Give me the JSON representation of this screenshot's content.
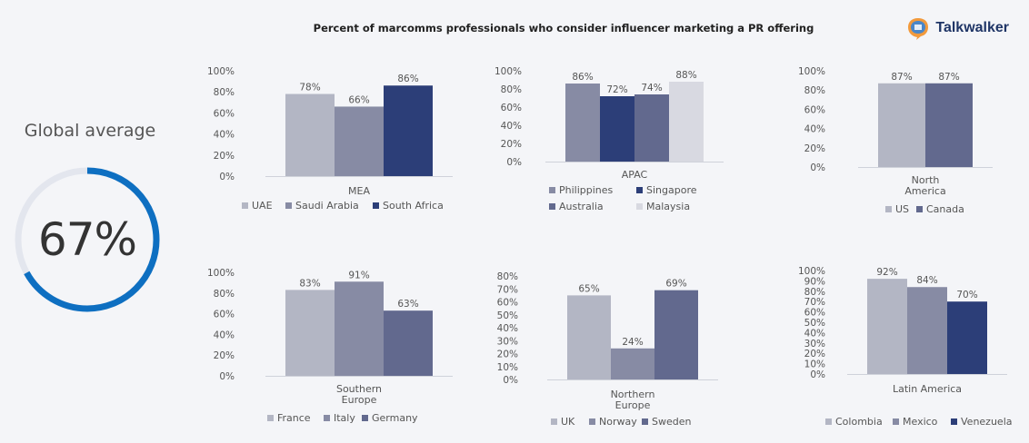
{
  "header": {
    "title": "Percent of marcomms professionals who consider influencer marketing a PR offering",
    "brand": "Talkwalker"
  },
  "global": {
    "label": "Global average",
    "value_text": "67%",
    "value": 67
  },
  "colors": {
    "palette": [
      "#b3b6c4",
      "#878ba4",
      "#2c3e78",
      "#62698e",
      "#d8d9e1"
    ],
    "ring": "#0e6fc1",
    "ring_track": "#e3e6ee"
  },
  "chart_data": [
    {
      "type": "bar",
      "title": "MEA",
      "ylim": [
        0,
        100
      ],
      "yticks": [
        0,
        20,
        40,
        60,
        80,
        100
      ],
      "series": [
        {
          "name": "UAE",
          "value": 78,
          "label": "78%",
          "color": "#b3b6c4"
        },
        {
          "name": "Saudi Arabia",
          "value": 66,
          "label": "66%",
          "color": "#878ba4"
        },
        {
          "name": "South Africa",
          "value": 86,
          "label": "86%",
          "color": "#2c3e78"
        }
      ],
      "legend": "bottom"
    },
    {
      "type": "bar",
      "title": "APAC",
      "ylim": [
        0,
        100
      ],
      "yticks": [
        0,
        20,
        40,
        60,
        80,
        100
      ],
      "series": [
        {
          "name": "Philippines",
          "value": 86,
          "label": "86%",
          "color": "#878ba4"
        },
        {
          "name": "Singapore",
          "value": 72,
          "label": "72%",
          "color": "#2c3e78"
        },
        {
          "name": "Australia",
          "value": 74,
          "label": "74%",
          "color": "#62698e"
        },
        {
          "name": "Malaysia",
          "value": 88,
          "label": "88%",
          "color": "#d8d9e1"
        }
      ],
      "legend": "bottom"
    },
    {
      "type": "bar",
      "title": "North America",
      "ylim": [
        0,
        100
      ],
      "yticks": [
        0,
        20,
        40,
        60,
        80,
        100
      ],
      "series": [
        {
          "name": "US",
          "value": 87,
          "label": "87%",
          "color": "#b3b6c4"
        },
        {
          "name": "Canada",
          "value": 87,
          "label": "87%",
          "color": "#62698e"
        }
      ],
      "legend": "bottom"
    },
    {
      "type": "bar",
      "title": "Southern Europe",
      "ylim": [
        0,
        100
      ],
      "yticks": [
        0,
        20,
        40,
        60,
        80,
        100
      ],
      "series": [
        {
          "name": "France",
          "value": 83,
          "label": "83%",
          "color": "#b3b6c4"
        },
        {
          "name": "Italy",
          "value": 91,
          "label": "91%",
          "color": "#878ba4"
        },
        {
          "name": "Germany",
          "value": 63,
          "label": "63%",
          "color": "#62698e"
        }
      ],
      "legend": "bottom"
    },
    {
      "type": "bar",
      "title": "Northern Europe",
      "ylim": [
        0,
        80
      ],
      "yticks": [
        0,
        10,
        20,
        30,
        40,
        50,
        60,
        70,
        80
      ],
      "series": [
        {
          "name": "UK",
          "value": 65,
          "label": "65%",
          "color": "#b3b6c4"
        },
        {
          "name": "Norway",
          "value": 24,
          "label": "24%",
          "color": "#878ba4"
        },
        {
          "name": "Sweden",
          "value": 69,
          "label": "69%",
          "color": "#62698e"
        }
      ],
      "legend": "bottom"
    },
    {
      "type": "bar",
      "title": "Latin America",
      "ylim": [
        0,
        100
      ],
      "yticks": [
        0,
        10,
        20,
        30,
        40,
        50,
        60,
        70,
        80,
        90,
        100
      ],
      "series": [
        {
          "name": "Colombia",
          "value": 92,
          "label": "92%",
          "color": "#b3b6c4"
        },
        {
          "name": "Mexico",
          "value": 84,
          "label": "84%",
          "color": "#878ba4"
        },
        {
          "name": "Venezuela",
          "value": 70,
          "label": "70%",
          "color": "#2c3e78"
        }
      ],
      "legend": "bottom"
    }
  ]
}
